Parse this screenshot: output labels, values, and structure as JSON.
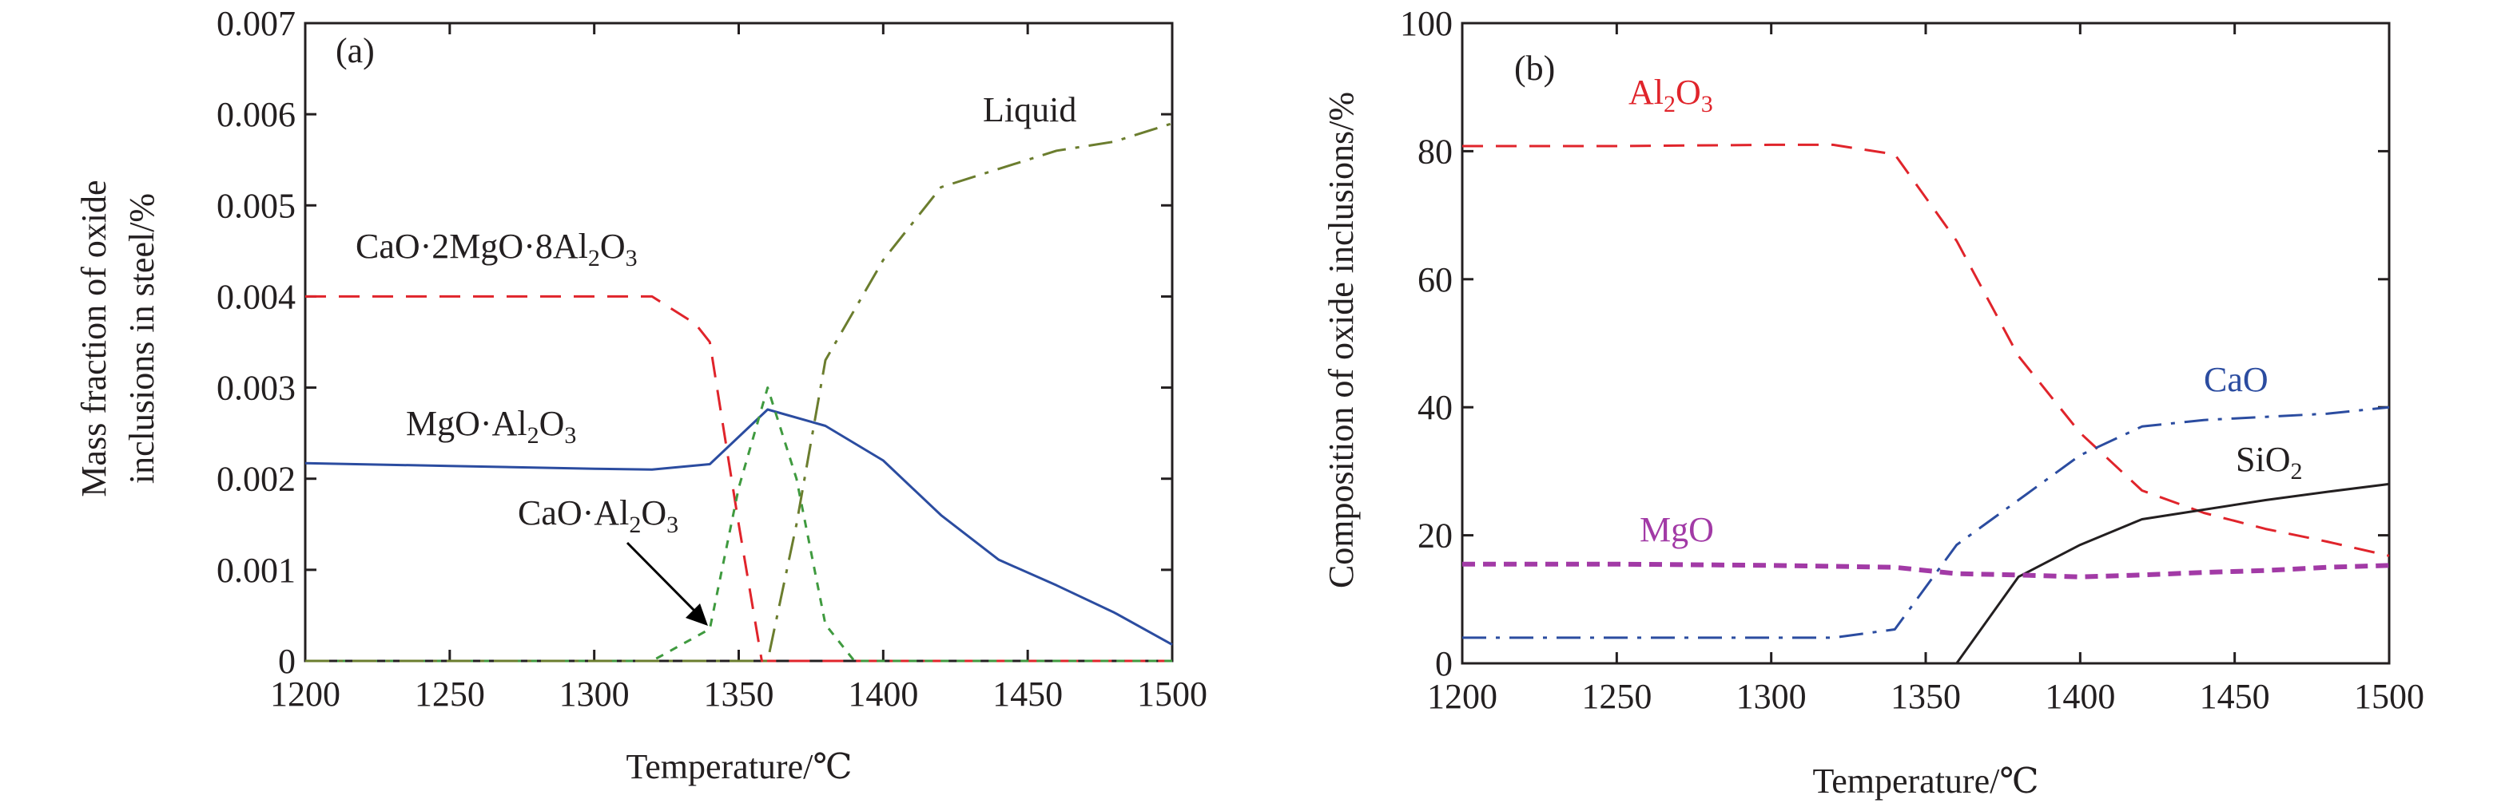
{
  "chart_data": [
    {
      "type": "line",
      "panel_label": "(a)",
      "xlabel": "Temperature/℃",
      "ylabel_lines": [
        "Mass fraction of oxide",
        "inclusions in steel/%"
      ],
      "xlim": [
        1200,
        1500
      ],
      "ylim": [
        0,
        0.007
      ],
      "xticks": [
        1200,
        1250,
        1300,
        1350,
        1400,
        1450,
        1500
      ],
      "yticks": [
        "0",
        "0.001",
        "0.002",
        "0.003",
        "0.004",
        "0.005",
        "0.006",
        "0.007"
      ],
      "series": [
        {
          "name": "CaO·2MgO·8Al2O3",
          "color": "#e0242b",
          "dash": "long-dash",
          "x": [
            1200,
            1320,
            1335,
            1340,
            1350,
            1358,
            1360,
            1500
          ],
          "y": [
            0.004,
            0.004,
            0.0037,
            0.0035,
            0.0015,
            0.0,
            0.0,
            0.0
          ]
        },
        {
          "name": "MgO·Al2O3",
          "color": "#2b4ca0",
          "dash": "solid",
          "x": [
            1200,
            1250,
            1300,
            1320,
            1340,
            1360,
            1380,
            1400,
            1420,
            1440,
            1460,
            1480,
            1500
          ],
          "y": [
            0.00217,
            0.00214,
            0.00211,
            0.0021,
            0.00216,
            0.00276,
            0.00258,
            0.0022,
            0.0016,
            0.00111,
            0.00083,
            0.00053,
            0.00018
          ]
        },
        {
          "name": "CaO·Al2O3",
          "color": "#3f9a3f",
          "dash": "short-dash",
          "x": [
            1200,
            1320,
            1340,
            1350,
            1360,
            1370,
            1380,
            1390,
            1500
          ],
          "y": [
            0.0,
            0.0,
            0.00035,
            0.0019,
            0.003,
            0.002,
            0.0004,
            0.0,
            0.0
          ]
        },
        {
          "name": "Liquid",
          "color": "#6b7d2e",
          "dash": "dash-dot",
          "x": [
            1200,
            1360,
            1370,
            1380,
            1400,
            1420,
            1440,
            1460,
            1480,
            1500
          ],
          "y": [
            0.0,
            0.0,
            0.0015,
            0.0033,
            0.0044,
            0.0052,
            0.0054,
            0.0056,
            0.0057,
            0.0059
          ]
        }
      ],
      "annotations": [
        {
          "text": "Liquid",
          "color": "#231f20"
        },
        {
          "text": "CaO·2MgO·8Al2O3",
          "color": "#231f20"
        },
        {
          "text": "MgO·Al2O3",
          "color": "#231f20"
        },
        {
          "text": "CaO·Al2O3",
          "color": "#231f20",
          "arrow": true
        }
      ]
    },
    {
      "type": "line",
      "panel_label": "(b)",
      "xlabel": "Temperature/℃",
      "ylabel": "Composition of oxide inclusions/%",
      "xlim": [
        1200,
        1500
      ],
      "ylim": [
        0,
        100
      ],
      "xticks": [
        1200,
        1250,
        1300,
        1350,
        1400,
        1450,
        1500
      ],
      "yticks": [
        "0",
        "20",
        "40",
        "60",
        "80",
        "100"
      ],
      "series": [
        {
          "name": "Al2O3",
          "color": "#e0242b",
          "dash": "long-dash",
          "x": [
            1200,
            1250,
            1300,
            1320,
            1340,
            1360,
            1380,
            1400,
            1420,
            1440,
            1460,
            1480,
            1500
          ],
          "y": [
            80.8,
            80.8,
            81.0,
            81.0,
            79.5,
            66.0,
            48.0,
            36.0,
            27.0,
            23.5,
            21.0,
            19.0,
            16.8
          ]
        },
        {
          "name": "CaO",
          "color": "#2b4ca0",
          "dash": "dash-dot",
          "x": [
            1200,
            1250,
            1300,
            1320,
            1340,
            1360,
            1380,
            1400,
            1420,
            1440,
            1460,
            1480,
            1500
          ],
          "y": [
            4.0,
            4.0,
            4.0,
            4.0,
            5.3,
            18.5,
            25.5,
            32.5,
            37.0,
            38.0,
            38.5,
            39.0,
            40.0
          ]
        },
        {
          "name": "SiO2",
          "color": "#231f20",
          "dash": "solid",
          "x": [
            1360,
            1380,
            1400,
            1420,
            1440,
            1460,
            1480,
            1500
          ],
          "y": [
            0.0,
            13.5,
            18.5,
            22.5,
            24.0,
            25.5,
            26.8,
            28.0
          ]
        },
        {
          "name": "MgO",
          "color": "#a23aa6",
          "dash": "heavy-dash",
          "x": [
            1200,
            1250,
            1300,
            1340,
            1360,
            1380,
            1400,
            1420,
            1440,
            1460,
            1480,
            1500
          ],
          "y": [
            15.5,
            15.5,
            15.3,
            15.0,
            14.0,
            13.8,
            13.5,
            13.8,
            14.2,
            14.5,
            15.0,
            15.3
          ]
        }
      ],
      "annotations": [
        {
          "text": "Al2O3",
          "color": "#e0242b"
        },
        {
          "text": "CaO",
          "color": "#2b4ca0"
        },
        {
          "text": "SiO2",
          "color": "#231f20"
        },
        {
          "text": "MgO",
          "color": "#a23aa6"
        }
      ]
    }
  ]
}
